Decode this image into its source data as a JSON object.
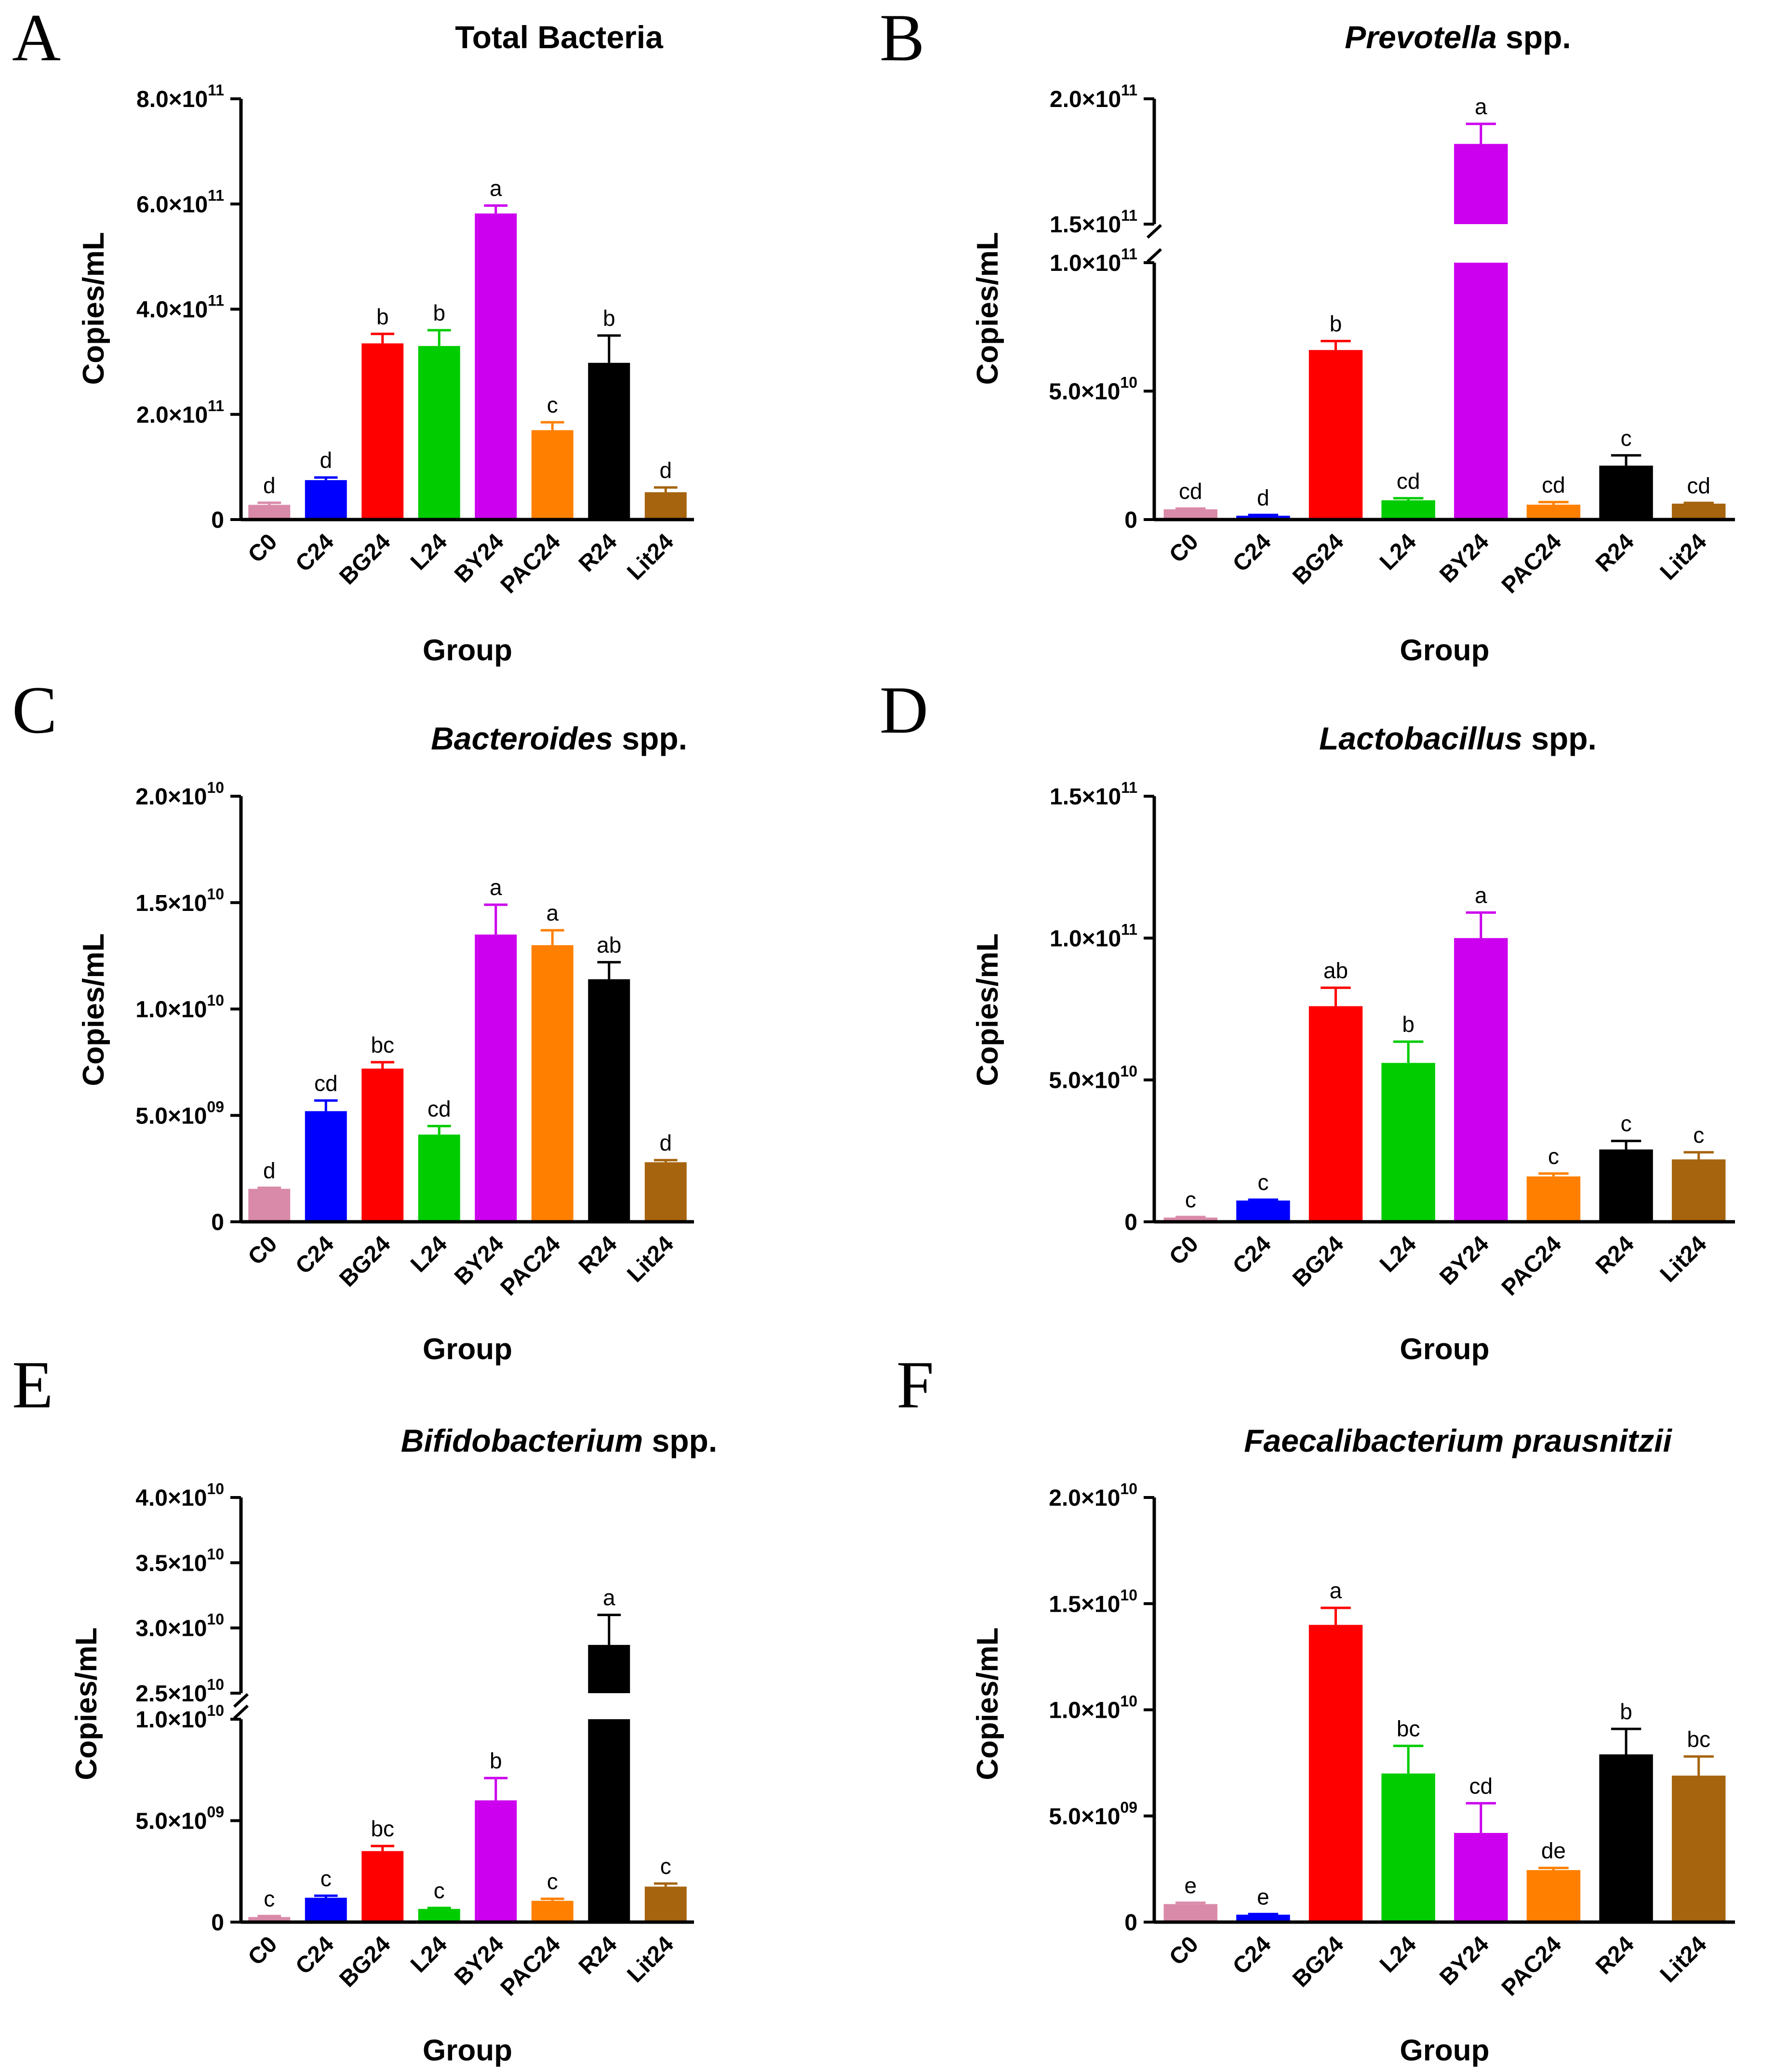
{
  "chart_data": [
    {
      "type": "bar",
      "panel_letter": "A",
      "title": "Total Bacteria",
      "xlabel": "Group",
      "ylabel": "Copies/mL",
      "categories": [
        "C0",
        "C24",
        "BG24",
        "L24",
        "BY24",
        "PAC24",
        "R24",
        "Lit24"
      ],
      "colors": [
        "#d98aa8",
        "#0000ff",
        "#ff0000",
        "#00cc00",
        "#cc00ee",
        "#ff8000",
        "#000000",
        "#a6640f"
      ],
      "values": [
        28000000000.0,
        75000000000.0,
        335000000000.0,
        330000000000.0,
        582000000000.0,
        170000000000.0,
        298000000000.0,
        52000000000.0
      ],
      "errors": [
        4000000000.0,
        5000000000.0,
        18000000000.0,
        30000000000.0,
        15000000000.0,
        15000000000.0,
        52000000000.0,
        9000000000.0
      ],
      "letters": [
        "d",
        "d",
        "b",
        "b",
        "a",
        "c",
        "b",
        "d"
      ],
      "ylim": [
        0,
        800000000000.0
      ],
      "yticks": [
        {
          "value": 0,
          "mantissa": "0",
          "exp": ""
        },
        {
          "value": 200000000000.0,
          "mantissa": "2.0×10",
          "exp": "11"
        },
        {
          "value": 400000000000.0,
          "mantissa": "4.0×10",
          "exp": "11"
        },
        {
          "value": 600000000000.0,
          "mantissa": "6.0×10",
          "exp": "11"
        },
        {
          "value": 800000000000.0,
          "mantissa": "8.0×10",
          "exp": "11"
        }
      ]
    },
    {
      "type": "bar",
      "panel_letter": "B",
      "title_italic": "Prevotella",
      "title_rest": " spp.",
      "xlabel": "Group",
      "ylabel": "Copies/mL",
      "categories": [
        "C0",
        "C24",
        "BG24",
        "L24",
        "BY24",
        "PAC24",
        "R24",
        "Lit24"
      ],
      "colors": [
        "#d98aa8",
        "#0000ff",
        "#ff0000",
        "#00cc00",
        "#cc00ee",
        "#ff8000",
        "#000000",
        "#a6640f"
      ],
      "values": [
        4000000000.0,
        1500000000.0,
        66000000000.0,
        7500000000.0,
        182000000000.0,
        5800000000.0,
        21000000000.0,
        6200000000.0
      ],
      "errors": [
        300000000.0,
        300000000.0,
        3500000000.0,
        800000000.0,
        8000000000.0,
        1000000000.0,
        4000000000.0,
        300000000.0
      ],
      "letters": [
        "cd",
        "d",
        "b",
        "cd",
        "a",
        "cd",
        "c",
        "cd"
      ],
      "ylim": [
        0,
        200000000000.0
      ],
      "axis_break": {
        "lower_max": 100000000000.0,
        "upper_min": 150000000000.0
      },
      "yticks": [
        {
          "value": 0,
          "mantissa": "0",
          "exp": ""
        },
        {
          "value": 50000000000.0,
          "mantissa": "5.0×10",
          "exp": "10"
        },
        {
          "value": 100000000000.0,
          "mantissa": "1.0×10",
          "exp": "11"
        },
        {
          "value": 150000000000.0,
          "mantissa": "1.5×10",
          "exp": "11"
        },
        {
          "value": 200000000000.0,
          "mantissa": "2.0×10",
          "exp": "11"
        }
      ]
    },
    {
      "type": "bar",
      "panel_letter": "C",
      "title_italic": "Bacteroides",
      "title_rest": " spp.",
      "xlabel": "Group",
      "ylabel": "Copies/mL",
      "categories": [
        "C0",
        "C24",
        "BG24",
        "L24",
        "BY24",
        "PAC24",
        "R24",
        "Lit24"
      ],
      "colors": [
        "#d98aa8",
        "#0000ff",
        "#ff0000",
        "#00cc00",
        "#cc00ee",
        "#ff8000",
        "#000000",
        "#a6640f"
      ],
      "values": [
        1550000000.0,
        5200000000.0,
        7200000000.0,
        4100000000.0,
        13500000000.0,
        13000000000.0,
        11400000000.0,
        2800000000.0
      ],
      "errors": [
        50000000.0,
        500000000.0,
        300000000.0,
        400000000.0,
        1400000000.0,
        700000000.0,
        800000000.0,
        100000000.0
      ],
      "letters": [
        "d",
        "cd",
        "bc",
        "cd",
        "a",
        "a",
        "ab",
        "d"
      ],
      "ylim": [
        0,
        20000000000.0
      ],
      "yticks": [
        {
          "value": 0,
          "mantissa": "0",
          "exp": ""
        },
        {
          "value": 5000000000.0,
          "mantissa": "5.0×10",
          "exp": "09"
        },
        {
          "value": 10000000000.0,
          "mantissa": "1.0×10",
          "exp": "10"
        },
        {
          "value": 15000000000.0,
          "mantissa": "1.5×10",
          "exp": "10"
        },
        {
          "value": 20000000000.0,
          "mantissa": "2.0×10",
          "exp": "10"
        }
      ]
    },
    {
      "type": "bar",
      "panel_letter": "D",
      "title_italic": "Lactobacillus",
      "title_rest": " spp.",
      "xlabel": "Group",
      "ylabel": "Copies/mL",
      "categories": [
        "C0",
        "C24",
        "BG24",
        "L24",
        "BY24",
        "PAC24",
        "R24",
        "Lit24"
      ],
      "colors": [
        "#d98aa8",
        "#0000ff",
        "#ff0000",
        "#00cc00",
        "#cc00ee",
        "#ff8000",
        "#000000",
        "#a6640f"
      ],
      "values": [
        1500000000.0,
        7500000000.0,
        76000000000.0,
        56000000000.0,
        100000000000.0,
        16000000000.0,
        25500000000.0,
        22000000000.0
      ],
      "errors": [
        200000000.0,
        300000000.0,
        6500000000.0,
        7500000000.0,
        9000000000.0,
        1000000000.0,
        3000000000.0,
        2500000000.0
      ],
      "letters": [
        "c",
        "c",
        "ab",
        "b",
        "a",
        "c",
        "c",
        "c"
      ],
      "ylim": [
        0,
        150000000000.0
      ],
      "yticks": [
        {
          "value": 0,
          "mantissa": "0",
          "exp": ""
        },
        {
          "value": 50000000000.0,
          "mantissa": "5.0×10",
          "exp": "10"
        },
        {
          "value": 100000000000.0,
          "mantissa": "1.0×10",
          "exp": "11"
        },
        {
          "value": 150000000000.0,
          "mantissa": "1.5×10",
          "exp": "11"
        }
      ]
    },
    {
      "type": "bar",
      "panel_letter": "E",
      "title_italic": "Bifidobacterium",
      "title_rest": " spp.",
      "xlabel": "Group",
      "ylabel": "Copies/mL",
      "categories": [
        "C0",
        "C24",
        "BG24",
        "L24",
        "BY24",
        "PAC24",
        "R24",
        "Lit24"
      ],
      "colors": [
        "#d98aa8",
        "#0000ff",
        "#ff0000",
        "#00cc00",
        "#cc00ee",
        "#ff8000",
        "#000000",
        "#a6640f"
      ],
      "values": [
        250000000.0,
        1200000000.0,
        3500000000.0,
        650000000.0,
        6000000000.0,
        1050000000.0,
        28700000000.0,
        1750000000.0
      ],
      "errors": [
        50000000.0,
        100000000.0,
        250000000.0,
        50000000.0,
        1100000000.0,
        100000000.0,
        2300000000.0,
        150000000.0
      ],
      "letters": [
        "c",
        "c",
        "bc",
        "c",
        "b",
        "c",
        "a",
        "c"
      ],
      "ylim": [
        0,
        40000000000.0
      ],
      "axis_break": {
        "lower_max": 10000000000.0,
        "upper_min": 25000000000.0
      },
      "yticks": [
        {
          "value": 0,
          "mantissa": "0",
          "exp": ""
        },
        {
          "value": 5000000000.0,
          "mantissa": "5.0×10",
          "exp": "09"
        },
        {
          "value": 10000000000.0,
          "mantissa": "1.0×10",
          "exp": "10"
        },
        {
          "value": 25000000000.0,
          "mantissa": "2.5×10",
          "exp": "10"
        },
        {
          "value": 30000000000.0,
          "mantissa": "3.0×10",
          "exp": "10"
        },
        {
          "value": 35000000000.0,
          "mantissa": "3.5×10",
          "exp": "10"
        },
        {
          "value": 40000000000.0,
          "mantissa": "4.0×10",
          "exp": "10"
        }
      ]
    },
    {
      "type": "bar",
      "panel_letter": "F",
      "title_italic": "Faecalibacterium prausnitzii",
      "title_rest": "",
      "xlabel": "Group",
      "ylabel": "Copies/mL",
      "categories": [
        "C0",
        "C24",
        "BG24",
        "L24",
        "BY24",
        "PAC24",
        "R24",
        "Lit24"
      ],
      "colors": [
        "#d98aa8",
        "#0000ff",
        "#ff0000",
        "#00cc00",
        "#cc00ee",
        "#ff8000",
        "#000000",
        "#a6640f"
      ],
      "values": [
        850000000.0,
        350000000.0,
        14000000000.0,
        7000000000.0,
        4200000000.0,
        2450000000.0,
        7900000000.0,
        6900000000.0
      ],
      "errors": [
        60000000.0,
        30000000.0,
        800000000.0,
        1300000000.0,
        1400000000.0,
        100000000.0,
        1200000000.0,
        900000000.0
      ],
      "letters": [
        "e",
        "e",
        "a",
        "bc",
        "cd",
        "de",
        "b",
        "bc"
      ],
      "ylim": [
        0,
        20000000000.0
      ],
      "yticks": [
        {
          "value": 0,
          "mantissa": "0",
          "exp": ""
        },
        {
          "value": 5000000000.0,
          "mantissa": "5.0×10",
          "exp": "09"
        },
        {
          "value": 10000000000.0,
          "mantissa": "1.0×10",
          "exp": "10"
        },
        {
          "value": 15000000000.0,
          "mantissa": "1.5×10",
          "exp": "10"
        },
        {
          "value": 20000000000.0,
          "mantissa": "2.0×10",
          "exp": "10"
        }
      ]
    }
  ]
}
